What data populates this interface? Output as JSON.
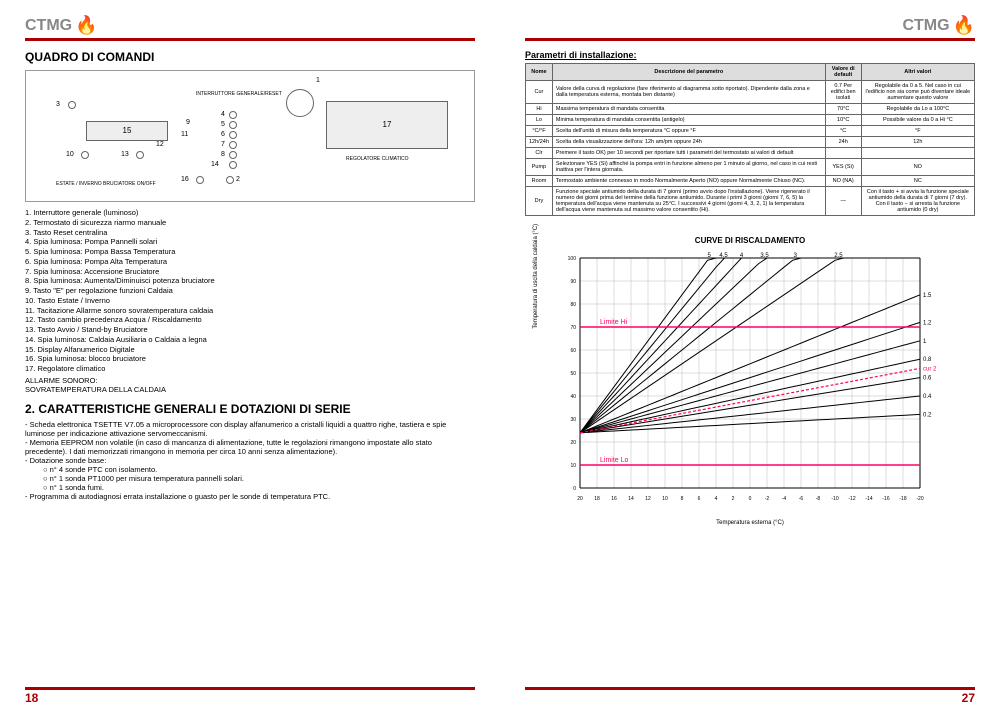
{
  "brand": "CTMG",
  "left": {
    "title": "QUADRO DI COMANDI",
    "pagenum": "18",
    "panel": {
      "labels": {
        "n1": "1",
        "n3": "3",
        "n4": "4",
        "n5": "5",
        "n6": "6",
        "n7": "7",
        "n8": "8",
        "n9": "9",
        "n10": "10",
        "n11": "11",
        "n12": "12",
        "n13": "13",
        "n14": "14",
        "n15": "15",
        "n16": "16",
        "n17": "17"
      },
      "small_text_left": "INTERRUTTORE GENERALE/RESET",
      "small_text_right": "REGOLATORE CLIMATICO",
      "bottom_text": "ESTATE / INVERNO    BRUCIATORE ON/OFF"
    },
    "list": [
      "1.   Interruttore generale (luminoso)",
      "2.   Termostato di sicurezza riarmo manuale",
      "3.   Tasto Reset centralina",
      "4.   Spia luminosa: Pompa Pannelli solari",
      "5.   Spia luminosa: Pompa Bassa Temperatura",
      "6.   Spia luminosa: Pompa Alta Temperatura",
      "7.   Spia luminosa: Accensione Bruciatore",
      "8.   Spia luminosa: Aumenta/Diminuisci potenza bruciatore",
      "9.   Tasto \"E\" per regolazione funzioni Caldaia",
      "10.  Tasto Estate / Inverno",
      "11.  Tacitazione Allarme sonoro sovratemperatura caldaia",
      "12.  Tasto cambio precedenza Acqua / Riscaldamento",
      "13.  Tasto Avvio / Stand-by Bruciatore",
      "14.  Spia luminosa: Caldaia Ausiliaria o Caldaia a legna",
      "15.  Display Alfanumerico Digitale",
      "16.  Spia luminosa: blocco bruciatore",
      "17.  Regolatore climatico"
    ],
    "alarm_title": "ALLARME SONORO:",
    "alarm_sub": "SOVRATEMPERATURA DELLA CALDAIA",
    "sec2_title": "2. CARATTERISTICHE GENERALI E DOTAZIONI DI SERIE",
    "sec2_items": [
      "Scheda elettronica TSETTE V7.05 a microprocessore con display alfanumerico a cristalli liquidi a quattro righe, tastiera e spie luminose per indicazione attivazione servomeccanismi.",
      "Memoria EEPROM non volatile (in caso di mancanza di alimentazione, tutte le regolazioni rimangono impostate allo stato precedente). I dati memorizzati rimangono in memoria per circa 10 anni senza alimentazione).",
      "Dotazione sonde base:",
      "Programma di autodiagnosi errata installazione o guasto per le sonde di temperatura PTC."
    ],
    "sonde": [
      "n° 4 sonde PTC con isolamento.",
      "n° 1 sonda PT1000 per misura temperatura pannelli solari.",
      "n° 1 sonda fumi."
    ]
  },
  "right": {
    "pagenum": "27",
    "param_title": "Parametri di installazione:",
    "table": {
      "headers": [
        "Nome",
        "Descrizione del parametro",
        "Valore di default",
        "Altri valori"
      ],
      "rows": [
        [
          "Cur",
          "Valore della curva di regolazione (fare riferimento al diagramma sotto riportato). Dipendente dalla zona e dalla temperatura esterna, montata ben distante)",
          "0.7\nPer edifici ben isolati",
          "Regolabile da 0 a 5. Nel caso in cui l'edificio non sia come può diventare ideale aumentare questo valore"
        ],
        [
          "Hi",
          "Massima temperatura di mandata consentita",
          "70°C",
          "Regolabile da Lo a 100°C"
        ],
        [
          "Lo",
          "Minima temperatura di mandata consentita (antigelo)",
          "10°C",
          "Possibile valore da 0 a Hi °C"
        ],
        [
          "°C/°F",
          "Scelta dell'unità di misura della temperatura °C oppure °F",
          "°C",
          "°F"
        ],
        [
          "12h/24h",
          "Scelta della visualizzazione dell'ora: 12h am/pm oppure 24h",
          "24h",
          "12h"
        ],
        [
          "Clr",
          "Premere il tasto OK) per 10 secondi per riportare tutti i parametri del termostato ai valori di default",
          "",
          ""
        ],
        [
          "Pump",
          "Selezionare YES (Sì) affinché la pompa entri in funzione almeno per 1 minuto al giorno, nel caso in cui resti inattiva per l'intera giornata.",
          "YES (Sì)",
          "NO"
        ],
        [
          "Room",
          "Termostato ambiente connesso in modo Normalmente Aperto (NO) oppure Normalmente Chiuso (NC).",
          "NO (NA)",
          "NC"
        ],
        [
          "Dry",
          "Funzione speciale antiumido della durata di 7 giorni (primo avvio dopo l'installazione). Viene rigenerato il numero dei giorni prima del termine della funzione antiumido. Durante i primi 3 giorni (giorni 7, 6, 5) la temperatura dell'acqua viene mantenuta su 25°C. I successivi 4 giorni (giorni 4, 3, 2, 1) la temperatura dell'acqua viene mantenuta sul massimo valore consentito (Hi).",
          "—",
          "Con il tasto + si avvia la funzione speciale antiumido della durata di 7 giorni (7 dry). Con il tasto − si arresta la funzione antiumido (0 dry)"
        ]
      ]
    },
    "chart": {
      "title": "CURVE DI RISCALDAMENTO",
      "ylabel": "Temperatura di uscita della caldaia (°C)",
      "xlabel": "Temperatura esterna (°C)",
      "xlim": [
        20,
        -20
      ],
      "ylim": [
        0,
        100
      ],
      "xticks": [
        20,
        18,
        16,
        14,
        12,
        10,
        8,
        6,
        4,
        2,
        0,
        -2,
        -4,
        -6,
        -8,
        -10,
        -12,
        -14,
        -16,
        -18,
        -20
      ],
      "yticks": [
        0,
        10,
        20,
        30,
        40,
        50,
        60,
        70,
        80,
        90,
        100
      ],
      "curves": [
        5,
        4.5,
        4,
        3.5,
        3,
        2.5,
        1.5,
        1.2,
        1,
        0.8,
        0.6,
        0.4,
        0.2
      ],
      "curve_labels_top": [
        "5",
        "4.5",
        "4",
        "3.5",
        "3",
        "2.5"
      ],
      "curve_labels_right": [
        "1.5",
        "1.2",
        "1",
        "0.8",
        "cur 2",
        "0.6",
        "0.4",
        "0.2"
      ],
      "origin_temp": 24,
      "limit_hi": {
        "label": "Limite Hi",
        "y": 70,
        "color": "#ff0066"
      },
      "limit_lo": {
        "label": "Limite Lo",
        "y": 10,
        "color": "#ff0066"
      },
      "grid_color": "#bbb",
      "line_color": "#000",
      "dotted_curve": 0.7,
      "dotted_color": "#ff0066",
      "bg": "#fff"
    }
  }
}
